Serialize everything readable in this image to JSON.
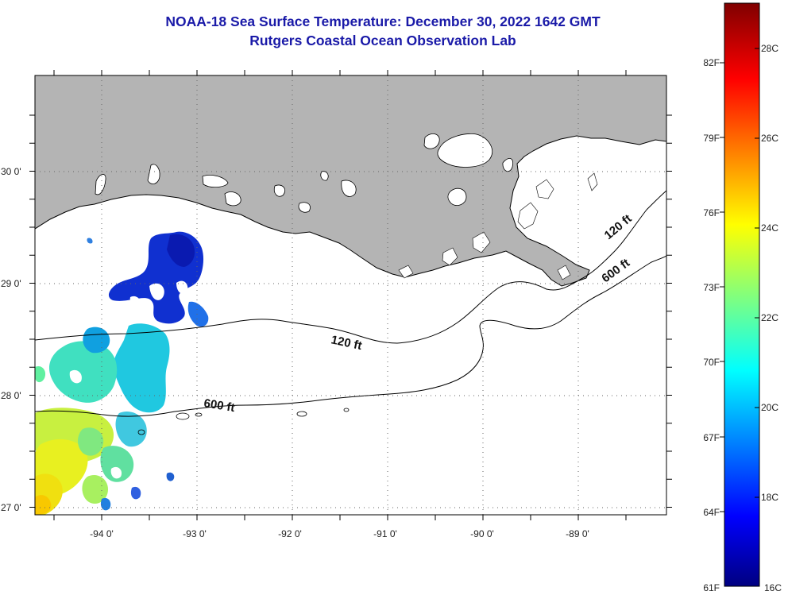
{
  "title": {
    "line1": "NOAA-18 Sea Surface Temperature:  December 30, 2022 1642 GMT",
    "line2": "Rutgers Coastal Ocean Observation Lab"
  },
  "map": {
    "lon_ticks": [
      "-94 0'",
      "-93 0'",
      "-92 0'",
      "-91 0'",
      "-90 0'",
      "-89 0'"
    ],
    "lat_ticks": [
      "30 0'",
      "29 0'",
      "28 0'",
      "27 0'"
    ],
    "contours": [
      "120 ft",
      "600 ft"
    ],
    "colors": {
      "land": "#b4b4b4",
      "grid": "#666666",
      "coast": "#000000"
    }
  },
  "colorbar": {
    "fahrenheit": [
      "82F",
      "79F",
      "76F",
      "73F",
      "70F",
      "67F",
      "64F",
      "61F"
    ],
    "celsius": [
      "28C",
      "26C",
      "24C",
      "22C",
      "20C",
      "18C",
      "16C"
    ],
    "colors": [
      "#000080",
      "#0000ff",
      "#00ffff",
      "#ffff00",
      "#ff0000",
      "#800000"
    ]
  }
}
